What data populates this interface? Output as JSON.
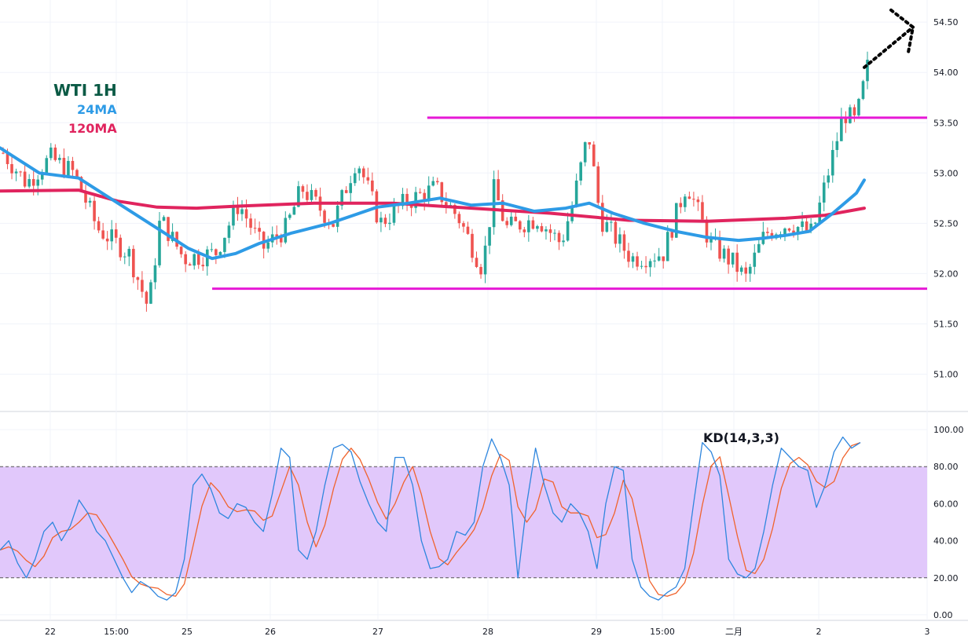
{
  "chart_data": [
    {
      "type": "candlestick",
      "title": "WTI 1H",
      "colors": {
        "up": "#26a69a",
        "down": "#ef5350",
        "ma24": "#2e9be6",
        "ma120": "#e0245e",
        "level": "#e619d6",
        "title": "#0b5a45",
        "arrow": "#000000"
      },
      "legend": [
        {
          "label": "24MA",
          "color": "#2e9be6"
        },
        {
          "label": "120MA",
          "color": "#e0245e"
        }
      ],
      "y_ticks": [
        "54.50",
        "54.00",
        "53.50",
        "53.00",
        "52.50",
        "52.00",
        "51.50",
        "51.00"
      ],
      "ylim": [
        50.66,
        54.72
      ],
      "x_ticks": [
        "22",
        "15:00",
        "25",
        "26",
        "27",
        "28",
        "29",
        "15:00",
        "二月",
        "2",
        "3"
      ],
      "grid": true,
      "horizontal_levels": [
        {
          "value": 53.55,
          "x_from": 0.41,
          "x_to": 1.0
        },
        {
          "value": 51.85,
          "x_from": 0.178,
          "x_to": 1.0
        }
      ],
      "forecast_arrow": "dotted arrow pointing up-right from the last candle",
      "anchors": [
        {
          "t": 0.0,
          "c": 53.2
        },
        {
          "t": 0.03,
          "c": 52.9
        },
        {
          "t": 0.06,
          "c": 53.15
        },
        {
          "t": 0.09,
          "c": 53.0
        },
        {
          "t": 0.12,
          "c": 52.45
        },
        {
          "t": 0.16,
          "c": 52.2
        },
        {
          "t": 0.185,
          "c": 51.65
        },
        {
          "t": 0.2,
          "c": 52.55
        },
        {
          "t": 0.23,
          "c": 52.15
        },
        {
          "t": 0.27,
          "c": 52.2
        },
        {
          "t": 0.3,
          "c": 52.7
        },
        {
          "t": 0.33,
          "c": 52.25
        },
        {
          "t": 0.36,
          "c": 52.45
        },
        {
          "t": 0.38,
          "c": 52.85
        },
        {
          "t": 0.42,
          "c": 52.5
        },
        {
          "t": 0.45,
          "c": 53.15
        },
        {
          "t": 0.48,
          "c": 52.5
        },
        {
          "t": 0.51,
          "c": 52.7
        },
        {
          "t": 0.55,
          "c": 52.85
        },
        {
          "t": 0.58,
          "c": 52.55
        },
        {
          "t": 0.61,
          "c": 52.05
        },
        {
          "t": 0.625,
          "c": 52.85
        },
        {
          "t": 0.64,
          "c": 52.45
        },
        {
          "t": 0.68,
          "c": 52.55
        },
        {
          "t": 0.71,
          "c": 52.3
        },
        {
          "t": 0.725,
          "c": 52.7
        },
        {
          "t": 0.745,
          "c": 53.4
        },
        {
          "t": 0.76,
          "c": 52.55
        },
        {
          "t": 0.8,
          "c": 52.15
        },
        {
          "t": 0.84,
          "c": 52.2
        },
        {
          "t": 0.87,
          "c": 52.9
        },
        {
          "t": 0.9,
          "c": 52.3
        },
        {
          "t": 0.93,
          "c": 52.1
        },
        {
          "t": 0.945,
          "c": 51.95
        },
        {
          "t": 0.97,
          "c": 52.4
        },
        {
          "t": 1.0,
          "c": 52.5
        },
        {
          "t": 1.03,
          "c": 52.4
        },
        {
          "t": 1.05,
          "c": 53.0
        },
        {
          "t": 1.07,
          "c": 53.6
        },
        {
          "t": 1.085,
          "c": 53.5
        },
        {
          "t": 1.1,
          "c": 54.05
        }
      ],
      "ma24_points": [
        [
          0.0,
          53.25
        ],
        [
          0.05,
          53.0
        ],
        [
          0.1,
          52.95
        ],
        [
          0.15,
          52.7
        ],
        [
          0.2,
          52.45
        ],
        [
          0.24,
          52.25
        ],
        [
          0.27,
          52.15
        ],
        [
          0.3,
          52.2
        ],
        [
          0.33,
          52.3
        ],
        [
          0.37,
          52.4
        ],
        [
          0.42,
          52.5
        ],
        [
          0.45,
          52.58
        ],
        [
          0.48,
          52.66
        ],
        [
          0.52,
          52.7
        ],
        [
          0.56,
          52.75
        ],
        [
          0.6,
          52.68
        ],
        [
          0.64,
          52.7
        ],
        [
          0.68,
          52.62
        ],
        [
          0.72,
          52.65
        ],
        [
          0.75,
          52.7
        ],
        [
          0.78,
          52.6
        ],
        [
          0.82,
          52.5
        ],
        [
          0.86,
          52.42
        ],
        [
          0.9,
          52.36
        ],
        [
          0.94,
          52.33
        ],
        [
          0.97,
          52.35
        ],
        [
          1.0,
          52.38
        ],
        [
          1.03,
          52.42
        ],
        [
          1.06,
          52.6
        ],
        [
          1.09,
          52.8
        ],
        [
          1.1,
          52.93
        ]
      ],
      "ma120_points": [
        [
          0.0,
          52.82
        ],
        [
          0.1,
          52.83
        ],
        [
          0.15,
          52.72
        ],
        [
          0.2,
          52.66
        ],
        [
          0.25,
          52.65
        ],
        [
          0.3,
          52.67
        ],
        [
          0.4,
          52.7
        ],
        [
          0.5,
          52.7
        ],
        [
          0.6,
          52.65
        ],
        [
          0.7,
          52.6
        ],
        [
          0.8,
          52.53
        ],
        [
          0.9,
          52.52
        ],
        [
          1.0,
          52.55
        ],
        [
          1.05,
          52.58
        ],
        [
          1.1,
          52.65
        ]
      ]
    },
    {
      "type": "line",
      "title": "KD(14,3,3)",
      "series": [],
      "y_ticks": [
        "100.00",
        "80.00",
        "60.00",
        "40.00",
        "20.00",
        "0.00"
      ],
      "ylim": [
        -3,
        103
      ],
      "band": [
        20,
        80
      ],
      "band_color": "#e1c8fb",
      "k_color": "#2e86de",
      "d_color": "#f0632d",
      "k_values": [
        35,
        40,
        28,
        20,
        30,
        45,
        50,
        40,
        48,
        62,
        55,
        45,
        40,
        30,
        20,
        12,
        18,
        15,
        10,
        8,
        12,
        30,
        70,
        76,
        68,
        55,
        52,
        60,
        58,
        50,
        45,
        65,
        90,
        85,
        35,
        30,
        45,
        70,
        90,
        92,
        88,
        72,
        60,
        50,
        45,
        85,
        85,
        70,
        40,
        25,
        26,
        30,
        45,
        43,
        50,
        80,
        95,
        85,
        70,
        20,
        60,
        90,
        70,
        55,
        50,
        60,
        55,
        45,
        25,
        60,
        80,
        78,
        30,
        15,
        10,
        8,
        12,
        15,
        25,
        60,
        93,
        88,
        75,
        30,
        22,
        20,
        25,
        45,
        70,
        90,
        85,
        80,
        78,
        58,
        70,
        88,
        96,
        90,
        93
      ]
    }
  ]
}
